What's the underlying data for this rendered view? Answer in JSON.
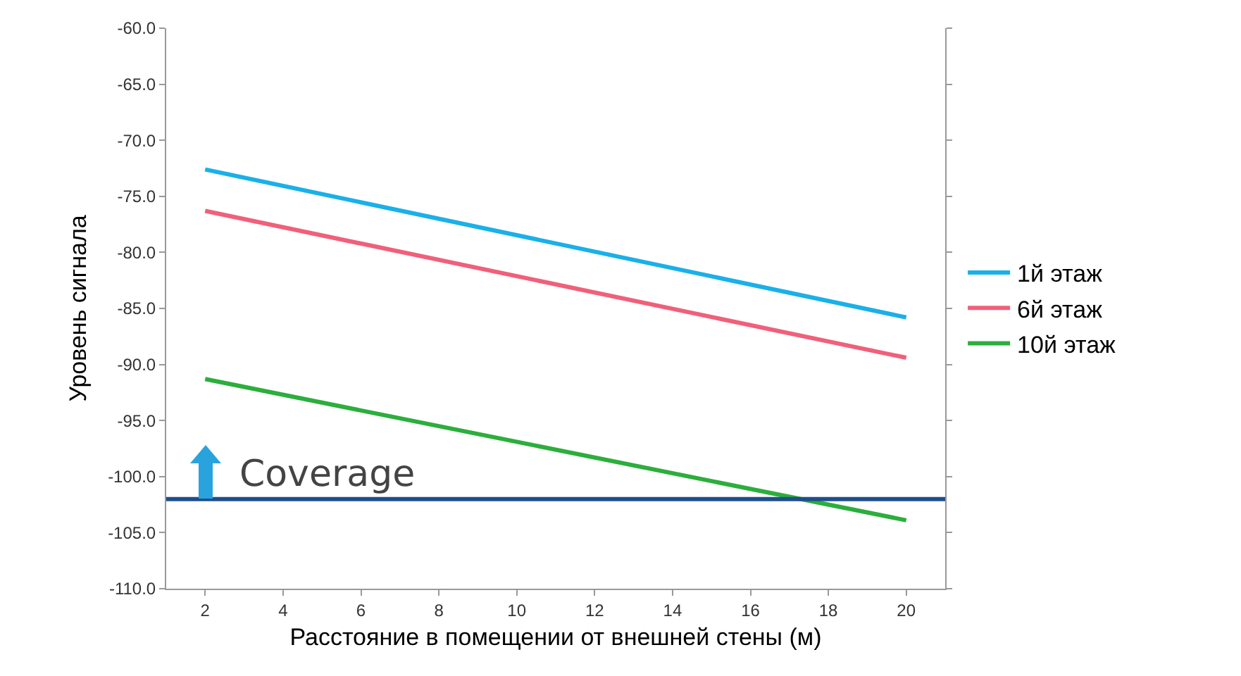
{
  "chart_data": {
    "type": "line",
    "xlabel": "Расстояние в помещении от внешней стены (м)",
    "ylabel": "Уровень сигнала",
    "x": [
      2,
      20
    ],
    "series": [
      {
        "name": "1й этаж",
        "color": "#1ab0e8",
        "values": [
          -72.6,
          -85.8
        ]
      },
      {
        "name": "6й этаж",
        "color": "#f0607a",
        "values": [
          -76.3,
          -89.4
        ]
      },
      {
        "name": "10й этаж",
        "color": "#2cae3c",
        "values": [
          -91.3,
          -103.9
        ]
      }
    ],
    "ref_lines": [
      {
        "axis": "y",
        "value": -102,
        "label": "Coverage",
        "color": "#1f4e8c"
      }
    ],
    "xlim": [
      1,
      21
    ],
    "xticks": [
      2,
      4,
      6,
      8,
      10,
      12,
      14,
      16,
      18,
      20
    ],
    "ylim": [
      -110,
      -60
    ],
    "yticks": [
      {
        "value": -60,
        "label": "-60.0"
      },
      {
        "value": -65,
        "label": "-65.0"
      },
      {
        "value": -70,
        "label": "-70.0"
      },
      {
        "value": -75,
        "label": "-75.0"
      },
      {
        "value": -80,
        "label": "-80.0"
      },
      {
        "value": -85,
        "label": "-85.0"
      },
      {
        "value": -90,
        "label": "-90.0"
      },
      {
        "value": -95,
        "label": "-95.0"
      },
      {
        "value": -100,
        "label": "-100.0"
      },
      {
        "value": -105,
        "label": "-105.0"
      },
      {
        "value": -110,
        "label": "-110.0"
      }
    ],
    "grid": false,
    "legend": "right",
    "marker": "none",
    "line_style": "solid"
  }
}
